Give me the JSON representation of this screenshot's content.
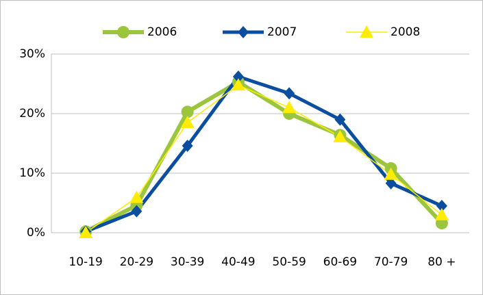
{
  "chart_data": {
    "type": "line",
    "categories": [
      "10-19",
      "20-29",
      "30-39",
      "40-49",
      "50-59",
      "60-69",
      "70-79",
      "80 +"
    ],
    "series": [
      {
        "name": "2006",
        "color": "#9bc53d",
        "marker": "circle",
        "line_width": 6,
        "values": [
          0.2,
          4.6,
          20.3,
          25.3,
          20,
          16.4,
          10.8,
          1.6
        ]
      },
      {
        "name": "2007",
        "color": "#0b4d9e",
        "marker": "diamond",
        "line_width": 5,
        "values": [
          0.2,
          3.6,
          14.6,
          26.2,
          23.4,
          19,
          8.3,
          4.5
        ]
      },
      {
        "name": "2008",
        "color": "#ffec00",
        "marker": "triangle",
        "line_width": 1.5,
        "values": [
          0,
          5.9,
          18.5,
          24.8,
          21,
          16.1,
          9.8,
          3
        ]
      }
    ],
    "ylim": [
      0,
      30
    ],
    "yticks": [
      {
        "value": 0,
        "label": "0%"
      },
      {
        "value": 10,
        "label": "10%"
      },
      {
        "value": 20,
        "label": "20%"
      },
      {
        "value": 30,
        "label": "30%"
      }
    ],
    "grid": true,
    "legend": "top"
  }
}
